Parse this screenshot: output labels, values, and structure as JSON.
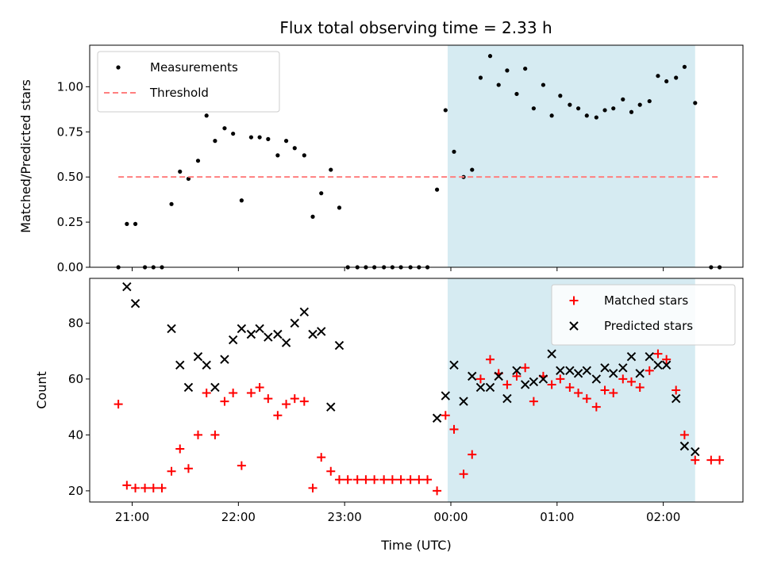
{
  "chart_data": [
    {
      "type": "scatter",
      "title": "Flux total observing time = 2.33 h",
      "xlabel": "",
      "ylabel": "Matched/Predicted stars",
      "ylim": [
        0,
        1.23
      ],
      "yticks": [
        "0.00",
        "0.25",
        "0.50",
        "0.75",
        "1.00"
      ],
      "legend_position": "top-left",
      "highlight_span": {
        "start": -0.03,
        "end": 2.3,
        "color": "#add8e6"
      },
      "series": [
        {
          "name": "Measurements",
          "style": "dot",
          "color": "#000000",
          "x": [
            -3.13,
            -3.05,
            -2.97,
            -2.88,
            -2.8,
            -2.72,
            -2.63,
            -2.55,
            -2.47,
            -2.38,
            -2.3,
            -2.22,
            -2.13,
            -2.05,
            -1.97,
            -1.88,
            -1.8,
            -1.72,
            -1.63,
            -1.55,
            -1.47,
            -1.38,
            -1.3,
            -1.22,
            -1.13,
            -1.05,
            -0.97,
            -0.88,
            -0.8,
            -0.72,
            -0.63,
            -0.55,
            -0.47,
            -0.38,
            -0.3,
            -0.22,
            -0.13,
            -0.05,
            0.03,
            0.12,
            0.2,
            0.28,
            0.37,
            0.45,
            0.53,
            0.62,
            0.7,
            0.78,
            0.87,
            0.95,
            1.03,
            1.12,
            1.2,
            1.28,
            1.37,
            1.45,
            1.53,
            1.62,
            1.7,
            1.78,
            1.87,
            1.95,
            2.03,
            2.12,
            2.2,
            2.3,
            2.45,
            2.53
          ],
          "y": [
            0.0,
            0.24,
            0.24,
            0.0,
            0.0,
            0.0,
            0.35,
            0.53,
            0.49,
            0.59,
            0.84,
            0.7,
            0.77,
            0.74,
            0.37,
            0.72,
            0.72,
            0.71,
            0.62,
            0.7,
            0.66,
            0.62,
            0.28,
            0.41,
            0.54,
            0.33,
            0.0,
            0.0,
            0.0,
            0.0,
            0.0,
            0.0,
            0.0,
            0.0,
            0.0,
            0.0,
            0.43,
            0.87,
            0.64,
            0.5,
            0.54,
            1.05,
            1.17,
            1.01,
            1.09,
            0.96,
            1.1,
            0.88,
            1.01,
            0.84,
            0.95,
            0.9,
            0.88,
            0.84,
            0.83,
            0.87,
            0.88,
            0.93,
            0.86,
            0.9,
            0.92,
            1.06,
            1.03,
            1.05,
            1.11,
            0.91,
            0.0,
            0.0
          ]
        },
        {
          "name": "Threshold",
          "style": "dashed-line",
          "color": "#ff7f7f",
          "x": [
            -3.13,
            2.53
          ],
          "y": [
            0.5,
            0.5
          ]
        }
      ]
    },
    {
      "type": "scatter",
      "title": "",
      "xlabel": "Time (UTC)",
      "ylabel": "Count",
      "ylim": [
        16,
        96
      ],
      "yticks": [
        "20",
        "40",
        "60",
        "80"
      ],
      "xlim": [
        -3.4,
        2.75
      ],
      "xticks": [
        {
          "v": -3,
          "label": "21:00"
        },
        {
          "v": -2,
          "label": "22:00"
        },
        {
          "v": -1,
          "label": "23:00"
        },
        {
          "v": 0,
          "label": "00:00"
        },
        {
          "v": 1,
          "label": "01:00"
        },
        {
          "v": 2,
          "label": "02:00"
        }
      ],
      "legend_position": "top-right",
      "highlight_span": {
        "start": -0.03,
        "end": 2.3,
        "color": "#add8e6"
      },
      "series": [
        {
          "name": "Matched stars",
          "style": "plus",
          "color": "#ff0000",
          "x": [
            -3.13,
            -3.05,
            -2.97,
            -2.88,
            -2.8,
            -2.72,
            -2.63,
            -2.55,
            -2.47,
            -2.38,
            -2.3,
            -2.22,
            -2.13,
            -2.05,
            -1.97,
            -1.88,
            -1.8,
            -1.72,
            -1.63,
            -1.55,
            -1.47,
            -1.38,
            -1.3,
            -1.22,
            -1.13,
            -1.05,
            -0.97,
            -0.88,
            -0.8,
            -0.72,
            -0.63,
            -0.55,
            -0.47,
            -0.38,
            -0.3,
            -0.22,
            -0.13,
            -0.05,
            0.03,
            0.12,
            0.2,
            0.28,
            0.37,
            0.45,
            0.53,
            0.62,
            0.7,
            0.78,
            0.87,
            0.95,
            1.03,
            1.12,
            1.2,
            1.28,
            1.37,
            1.45,
            1.53,
            1.62,
            1.7,
            1.78,
            1.87,
            1.95,
            2.03,
            2.12,
            2.2,
            2.3,
            2.45,
            2.53
          ],
          "y": [
            51,
            22,
            21,
            21,
            21,
            21,
            27,
            35,
            28,
            40,
            55,
            40,
            52,
            55,
            29,
            55,
            57,
            53,
            47,
            51,
            53,
            52,
            21,
            32,
            27,
            24,
            24,
            24,
            24,
            24,
            24,
            24,
            24,
            24,
            24,
            24,
            20,
            47,
            42,
            26,
            33,
            60,
            67,
            62,
            58,
            61,
            64,
            52,
            61,
            58,
            60,
            57,
            55,
            53,
            50,
            56,
            55,
            60,
            59,
            57,
            63,
            69,
            67,
            56,
            40,
            31,
            31,
            31
          ]
        },
        {
          "name": "Predicted stars",
          "style": "cross",
          "color": "#000000",
          "x": [
            -3.05,
            -2.97,
            -2.63,
            -2.55,
            -2.47,
            -2.38,
            -2.3,
            -2.22,
            -2.13,
            -2.05,
            -1.97,
            -1.88,
            -1.8,
            -1.72,
            -1.63,
            -1.55,
            -1.47,
            -1.38,
            -1.3,
            -1.22,
            -1.13,
            -1.05,
            -0.13,
            -0.05,
            0.03,
            0.12,
            0.2,
            0.28,
            0.37,
            0.45,
            0.53,
            0.62,
            0.7,
            0.78,
            0.87,
            0.95,
            1.03,
            1.12,
            1.2,
            1.28,
            1.37,
            1.45,
            1.53,
            1.62,
            1.7,
            1.78,
            1.87,
            1.95,
            2.03,
            2.12,
            2.2,
            2.3
          ],
          "y": [
            93,
            87,
            78,
            65,
            57,
            68,
            65,
            57,
            67,
            74,
            78,
            76,
            78,
            75,
            76,
            73,
            80,
            84,
            76,
            77,
            50,
            72,
            46,
            54,
            65,
            52,
            61,
            57,
            57,
            61,
            53,
            63,
            58,
            59,
            60,
            69,
            63,
            63,
            62,
            63,
            60,
            64,
            62,
            64,
            68,
            62,
            68,
            65,
            65,
            53,
            36,
            34
          ]
        }
      ]
    }
  ]
}
